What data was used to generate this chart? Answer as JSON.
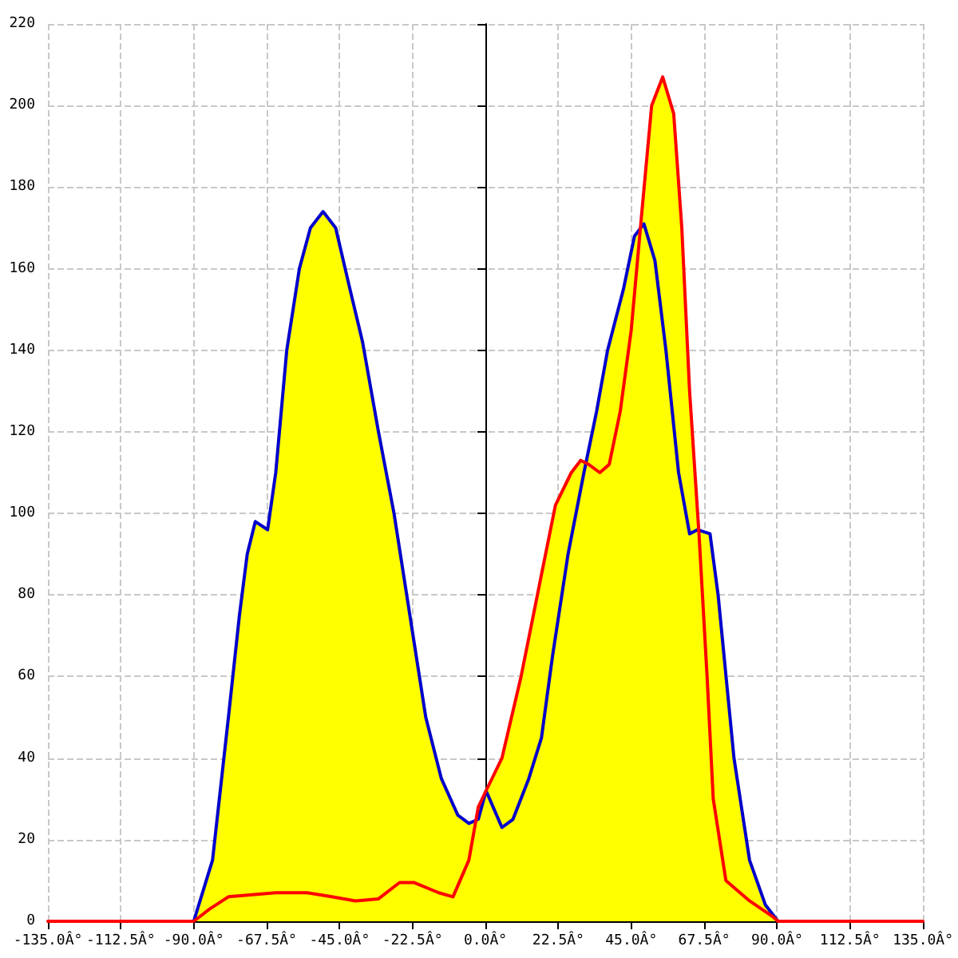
{
  "chart_data": {
    "type": "area",
    "xlim": [
      -135,
      135
    ],
    "ylim": [
      0,
      220
    ],
    "xticks": [
      {
        "value": -135,
        "label": "-135.0Â°"
      },
      {
        "value": -112.5,
        "label": "-112.5Â°"
      },
      {
        "value": -90,
        "label": "-90.0Â°"
      },
      {
        "value": -67.5,
        "label": "-67.5Â°"
      },
      {
        "value": -45,
        "label": "-45.0Â°"
      },
      {
        "value": -22.5,
        "label": "-22.5Â°"
      },
      {
        "value": 0,
        "label": "0.0Â°"
      },
      {
        "value": 22.5,
        "label": "22.5Â°"
      },
      {
        "value": 45,
        "label": "45.0Â°"
      },
      {
        "value": 67.5,
        "label": "67.5Â°"
      },
      {
        "value": 90,
        "label": "90.0Â°"
      },
      {
        "value": 112.5,
        "label": "112.5Â°"
      },
      {
        "value": 135,
        "label": "135.0Â°"
      }
    ],
    "yticks": [
      0,
      20,
      40,
      60,
      80,
      100,
      120,
      140,
      160,
      180,
      200,
      220
    ],
    "grid": true,
    "marker": "none",
    "line_style": "solid",
    "series": [
      {
        "color": "#ffff00",
        "x": [
          -90,
          -84.2,
          -79.3,
          -75.9,
          -73.5,
          -71,
          -67.2,
          -64.7,
          -61.3,
          -57.4,
          -54,
          -50.1,
          -46.2,
          -41.8,
          -37.9,
          -33,
          -28.2,
          -23.3,
          -18.4,
          -13.6,
          -8.5,
          -5.1,
          -3,
          -2.2,
          0.2,
          5.1,
          11,
          17.3,
          21.6,
          26.5,
          29.4,
          31,
          34.3,
          37.7,
          42.6,
          46,
          47.8,
          48.4,
          51.3,
          54.7,
          58.1,
          60.6,
          63,
          65.8,
          69.3,
          71.8,
          76.7,
          81.5,
          86.4,
          90.3
        ],
        "values": [
          0,
          15,
          50,
          75,
          90,
          98,
          96,
          110,
          140,
          160,
          170,
          174,
          170,
          155,
          142,
          120,
          100,
          75,
          50,
          35,
          26,
          24,
          25,
          28,
          32,
          40,
          60,
          85,
          102,
          110,
          113,
          113,
          125,
          140,
          155,
          168,
          170,
          175,
          200,
          207,
          198,
          170,
          130,
          96,
          95,
          80,
          40,
          15,
          4,
          0
        ]
      },
      {
        "type": "line",
        "color": "#0000cc",
        "x": [
          -90,
          -84.2,
          -79.3,
          -75.9,
          -73.5,
          -71,
          -67.2,
          -64.7,
          -61.3,
          -57.4,
          -54,
          -50.1,
          -46.2,
          -41.8,
          -37.9,
          -33,
          -28.2,
          -23.3,
          -18.4,
          -13.6,
          -8.5,
          -5.1,
          -2.2,
          0.2,
          5.1,
          8.5,
          13.4,
          17.3,
          20.7,
          25.5,
          30.4,
          34.3,
          37.7,
          42.6,
          46,
          48.9,
          52.3,
          55.7,
          59.6,
          63,
          65.5,
          69.3,
          71.8,
          76.7,
          81.5,
          86.4,
          90.3
        ],
        "values": [
          0,
          15,
          50,
          75,
          90,
          98,
          96,
          110,
          140,
          160,
          170,
          174,
          170,
          155,
          142,
          120,
          100,
          75,
          50,
          35,
          26,
          24,
          25,
          32,
          23,
          25,
          35,
          45,
          65,
          90,
          110,
          125,
          140,
          155,
          168,
          171,
          162,
          140,
          110,
          95,
          96,
          95,
          80,
          40,
          15,
          4,
          0
        ]
      },
      {
        "type": "line",
        "color": "#ff0000",
        "x": [
          -135,
          -90,
          -85.1,
          -79.3,
          -72,
          -64.7,
          -55,
          -47.4,
          -40.1,
          -33,
          -26.5,
          -22.1,
          -14.4,
          -10,
          -5.1,
          -2.2,
          0.2,
          5.1,
          11,
          17.3,
          21.6,
          26.5,
          29.4,
          31.9,
          35.3,
          38.2,
          41.6,
          45,
          48.4,
          51.3,
          54.7,
          58.1,
          60.6,
          63,
          65.9,
          68.4,
          70.3,
          74.2,
          81.5,
          88.9,
          90.3,
          135
        ],
        "values": [
          0,
          0,
          3,
          6,
          6.5,
          7,
          7,
          6,
          5,
          5.5,
          9.5,
          9.5,
          7,
          6,
          15,
          28,
          32,
          40,
          60,
          85,
          102,
          110,
          113,
          112,
          110,
          112,
          125,
          145,
          175,
          200,
          207,
          198,
          170,
          130,
          95,
          60,
          30,
          10,
          5,
          1,
          0,
          0
        ]
      }
    ]
  }
}
